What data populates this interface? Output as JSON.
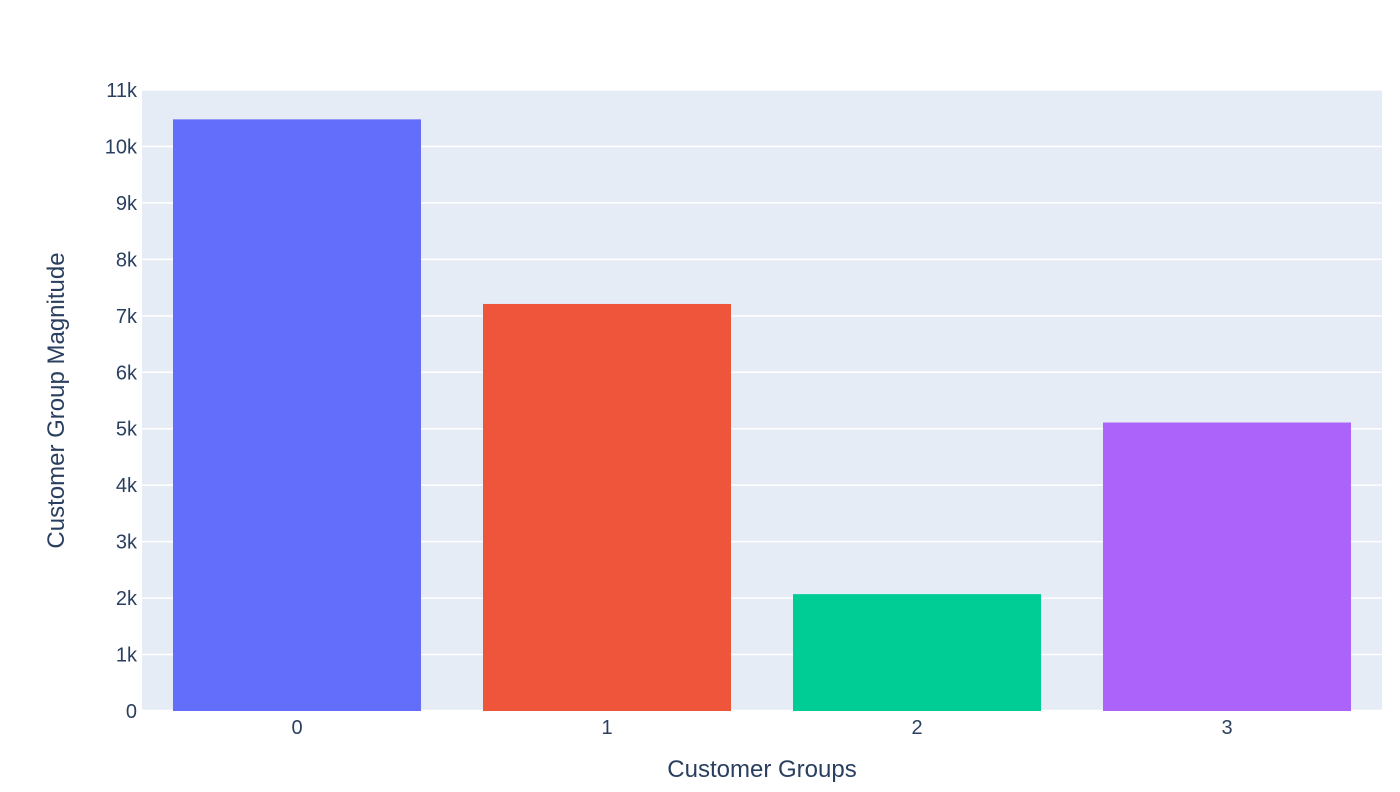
{
  "chart_data": {
    "type": "bar",
    "title": "",
    "xlabel": "Customer Groups",
    "ylabel": "Customer Group Magnitude",
    "categories": [
      "0",
      "1",
      "2",
      "3"
    ],
    "values": [
      10480,
      7210,
      2070,
      5110
    ],
    "colors": [
      "#636efa",
      "#EF553B",
      "#00cc96",
      "#ab63fa"
    ],
    "ylim": [
      0,
      11000
    ],
    "yticks": [
      0,
      1000,
      2000,
      3000,
      4000,
      5000,
      6000,
      7000,
      8000,
      9000,
      10000,
      11000
    ],
    "ytick_labels": [
      "0",
      "1k",
      "2k",
      "3k",
      "4k",
      "5k",
      "6k",
      "7k",
      "8k",
      "9k",
      "10k",
      "11k"
    ],
    "grid": true,
    "legend": "none",
    "plot_background": "#e5ecf6"
  }
}
